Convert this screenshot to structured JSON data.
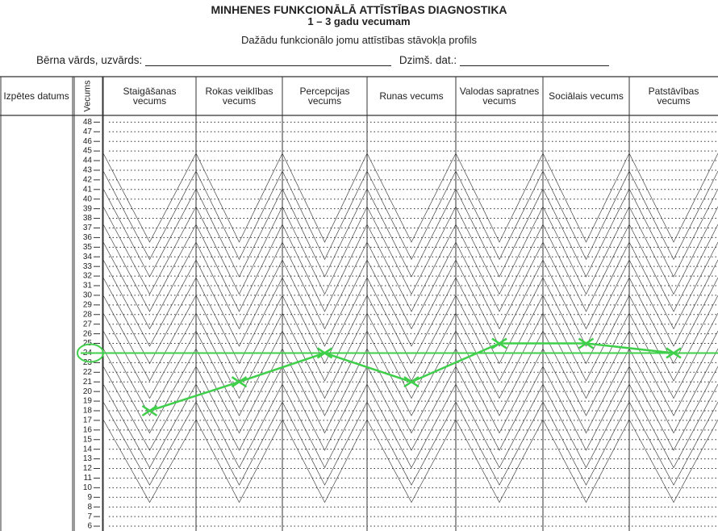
{
  "chart_data": {
    "type": "line",
    "title": "MINHENES FUNKCIONĀLĀ ATTĪSTĪBAS DIAGNOSTIKA",
    "subtitle": "1 – 3 gadu vecumam",
    "heading": "Dažādu funkcionālo jomu attīstības stāvokļa profils",
    "name_field": "Bērna vārds, uzvārds:",
    "date_field": "Dzimš. dat.:",
    "date_column": "Izpētes datums",
    "y_label": "Vecums",
    "categories": [
      "Staigāšanas vecums",
      "Rokas veiklības vecums",
      "Percepcijas vecums",
      "Runas vecums",
      "Valodas sapratnes vecums",
      "Sociālais vecums",
      "Patstāvības vecums"
    ],
    "series": [
      {
        "color": "#3fcf4a",
        "values": [
          18,
          21,
          24,
          21,
          25,
          25,
          24
        ]
      }
    ],
    "reference_line": 24,
    "ylim": [
      5.5,
      48.7
    ],
    "yticks": [
      6,
      7,
      8,
      9,
      10,
      11,
      12,
      13,
      14,
      15,
      16,
      17,
      18,
      19,
      20,
      21,
      22,
      23,
      24,
      25,
      26,
      27,
      28,
      29,
      30,
      31,
      32,
      33,
      34,
      35,
      36,
      37,
      38,
      39,
      40,
      41,
      42,
      43,
      44,
      45,
      46,
      47,
      48
    ],
    "grid": true
  }
}
